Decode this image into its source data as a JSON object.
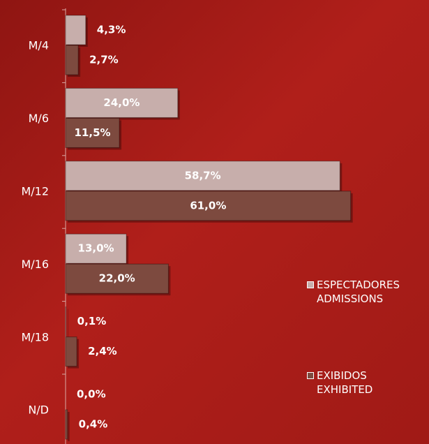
{
  "chart_data": {
    "type": "bar",
    "orientation": "horizontal",
    "categories": [
      "M/4",
      "M/6",
      "M/12",
      "M/16",
      "M/18",
      "N/D"
    ],
    "series": [
      {
        "name": "ESPECTADORES\nADMISSIONS",
        "color": "#c7aeab",
        "values": [
          4.3,
          24.0,
          58.7,
          13.0,
          0.1,
          0.0
        ],
        "value_labels": [
          "4,3%",
          "24,0%",
          "58,7%",
          "13,0%",
          "0,1%",
          "0,0%"
        ]
      },
      {
        "name": "EXIBIDOS\nEXHIBITED",
        "color": "#7d4a3f",
        "values": [
          2.7,
          11.5,
          61.0,
          22.0,
          2.4,
          0.4
        ],
        "value_labels": [
          "2,7%",
          "11,5%",
          "61,0%",
          "22,0%",
          "2,4%",
          "0,4%"
        ]
      }
    ]
  }
}
